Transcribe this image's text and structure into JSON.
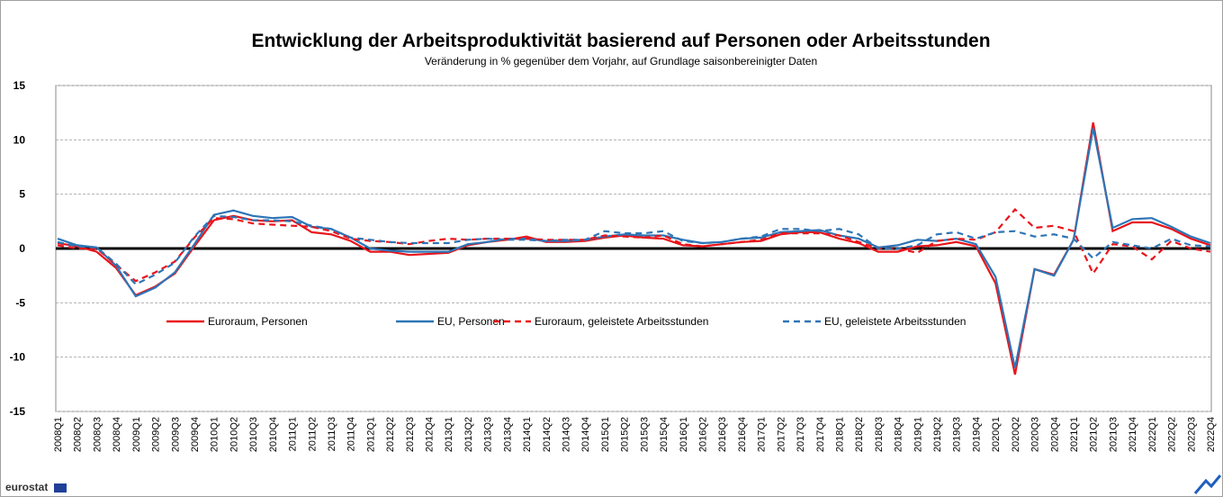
{
  "chart_data": {
    "type": "line",
    "title": "Entwicklung der Arbeitsproduktivität basierend auf Personen oder Arbeitsstunden",
    "subtitle": "Veränderung  in % gegenüber  dem Vorjahr,  auf Grundlage  saisonbereinigter  Daten",
    "footer": "eurostat",
    "categories": [
      "2008Q1",
      "2008Q2",
      "2008Q3",
      "2008Q4",
      "2009Q1",
      "2009Q2",
      "2009Q3",
      "2009Q4",
      "2010Q1",
      "2010Q2",
      "2010Q3",
      "2010Q4",
      "2011Q1",
      "2011Q2",
      "2011Q3",
      "2011Q4",
      "2012Q1",
      "2012Q2",
      "2012Q3",
      "2012Q4",
      "2013Q1",
      "2013Q2",
      "2013Q3",
      "2013Q4",
      "2014Q1",
      "2014Q2",
      "2014Q3",
      "2014Q4",
      "2015Q1",
      "2015Q2",
      "2015Q3",
      "2015Q4",
      "2016Q1",
      "2016Q2",
      "2016Q3",
      "2016Q4",
      "2017Q1",
      "2017Q2",
      "2017Q3",
      "2017Q4",
      "2018Q1",
      "2018Q2",
      "2018Q3",
      "2018Q4",
      "2019Q1",
      "2019Q2",
      "2019Q3",
      "2019Q4",
      "2020Q1",
      "2020Q2",
      "2020Q3",
      "2020Q4",
      "2021Q1",
      "2021Q2",
      "2021Q3",
      "2021Q4",
      "2022Q1",
      "2022Q2",
      "2022Q3",
      "2022Q4"
    ],
    "series": [
      {
        "name": "Euroraum, Personen",
        "color": "#e8151b",
        "dash": false,
        "values": [
          0.5,
          0.2,
          -0.3,
          -1.8,
          -4.3,
          -3.5,
          -2.3,
          0.2,
          2.6,
          3.0,
          2.6,
          2.5,
          2.6,
          1.5,
          1.3,
          0.7,
          -0.3,
          -0.3,
          -0.6,
          -0.5,
          -0.4,
          0.3,
          0.6,
          0.8,
          1.1,
          0.6,
          0.6,
          0.7,
          1.0,
          1.2,
          1.0,
          0.9,
          0.3,
          0.2,
          0.4,
          0.6,
          0.7,
          1.3,
          1.5,
          1.5,
          0.9,
          0.5,
          -0.3,
          -0.3,
          0.2,
          0.3,
          0.6,
          0.2,
          -3.2,
          -11.6,
          -1.9,
          -2.4,
          0.8,
          11.6,
          1.6,
          2.4,
          2.4,
          1.8,
          0.9,
          0.3
        ]
      },
      {
        "name": "EU, Personen",
        "color": "#2e75b6",
        "dash": false,
        "values": [
          0.9,
          0.3,
          0.1,
          -1.6,
          -4.4,
          -3.6,
          -2.2,
          0.4,
          3.1,
          3.5,
          3.0,
          2.8,
          2.9,
          2.0,
          1.8,
          1.0,
          0.0,
          -0.2,
          -0.3,
          -0.3,
          -0.3,
          0.4,
          0.6,
          0.9,
          0.9,
          0.7,
          0.7,
          0.8,
          1.1,
          1.3,
          1.2,
          1.2,
          0.8,
          0.5,
          0.6,
          0.9,
          1.0,
          1.5,
          1.6,
          1.7,
          1.2,
          0.9,
          0.1,
          0.3,
          0.8,
          0.7,
          0.9,
          0.4,
          -2.6,
          -11.0,
          -1.9,
          -2.5,
          0.8,
          11.1,
          1.9,
          2.7,
          2.8,
          2.0,
          1.1,
          0.5
        ]
      },
      {
        "name": "Euroraum, geleistete Arbeitsstunden",
        "color": "#e8151b",
        "dash": true,
        "values": [
          0.3,
          0.0,
          0.0,
          -1.5,
          -3.0,
          -2.2,
          -1.2,
          1.0,
          2.8,
          2.7,
          2.3,
          2.2,
          2.1,
          2.0,
          1.6,
          0.9,
          0.7,
          0.6,
          0.4,
          0.7,
          0.9,
          0.8,
          0.9,
          0.9,
          0.9,
          0.8,
          0.8,
          0.8,
          1.2,
          1.1,
          1.0,
          1.2,
          0.4,
          0.2,
          0.4,
          0.6,
          0.8,
          1.4,
          1.4,
          1.4,
          1.2,
          0.6,
          0.0,
          0.0,
          -0.4,
          0.7,
          0.9,
          0.8,
          1.5,
          3.6,
          1.9,
          2.1,
          1.6,
          -2.3,
          0.4,
          0.2,
          -1.0,
          0.7,
          0.0,
          -0.3
        ]
      },
      {
        "name": "EU, geleistete Arbeitsstunden",
        "color": "#2e75b6",
        "dash": true,
        "values": [
          0.6,
          0.2,
          0.1,
          -1.4,
          -3.3,
          -2.4,
          -1.3,
          1.1,
          3.0,
          2.9,
          2.6,
          2.6,
          2.5,
          2.1,
          1.8,
          1.0,
          0.8,
          0.6,
          0.5,
          0.5,
          0.5,
          0.8,
          0.9,
          0.8,
          0.8,
          0.7,
          0.8,
          0.8,
          1.6,
          1.4,
          1.4,
          1.6,
          0.7,
          0.5,
          0.6,
          0.9,
          1.1,
          1.8,
          1.8,
          1.6,
          1.8,
          1.3,
          0.0,
          0.0,
          0.3,
          1.3,
          1.5,
          0.9,
          1.5,
          1.6,
          1.1,
          1.3,
          0.9,
          -0.9,
          0.6,
          0.3,
          0.0,
          0.9,
          0.3,
          0.2
        ]
      }
    ],
    "ylim": [
      -15,
      15
    ],
    "yticks": [
      -15,
      -10,
      -5,
      0,
      5,
      10,
      15
    ],
    "grid": true
  }
}
